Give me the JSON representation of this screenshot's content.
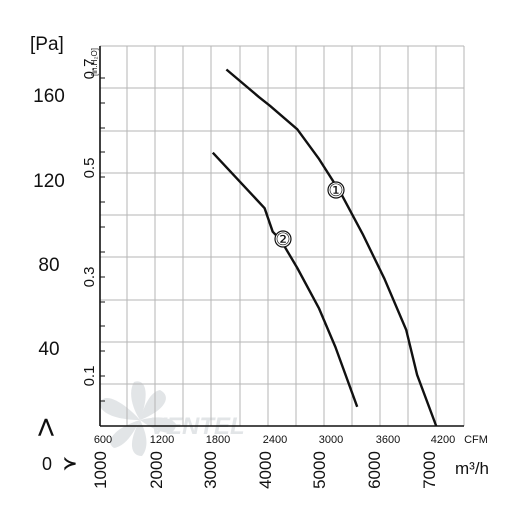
{
  "chart_data": {
    "type": "line",
    "title": "",
    "y_unit_pa": "[Pa]",
    "y_unit_inh2o": "[in.H₂O]",
    "x_unit_cfm": "CFM",
    "x_unit_m3h": "m³/h",
    "axis_zero": "0",
    "y_pa_ticks": [
      "40",
      "80",
      "120",
      "160"
    ],
    "y_inh2o_ticks": [
      "0.1",
      "0.3",
      "0.5",
      "0.7"
    ],
    "x_cfm_ticks": [
      "600",
      "1200",
      "1800",
      "2400",
      "3000",
      "3600",
      "4200"
    ],
    "x_m3h_ticks": [
      "1000",
      "2000",
      "3000",
      "4000",
      "5000",
      "6000",
      "7000"
    ],
    "xlim_m3h": [
      880,
      7560
    ],
    "ylim_pa": [
      0,
      178
    ],
    "grid": true,
    "series": [
      {
        "name": "①",
        "x": [
          3200,
          3800,
          4000,
          4500,
          4900,
          5300,
          5700,
          6100,
          6500,
          6700,
          7050
        ],
        "y": [
          167,
          154,
          150,
          139,
          125,
          109,
          90,
          69,
          45,
          24,
          0
        ]
      },
      {
        "name": "②",
        "x": [
          2950,
          3500,
          3900,
          4050,
          4200,
          4500,
          4900,
          5200,
          5600
        ],
        "y": [
          128,
          113,
          102,
          91,
          87,
          74,
          55,
          37,
          9
        ]
      }
    ]
  },
  "watermark_text": "VENTEL"
}
